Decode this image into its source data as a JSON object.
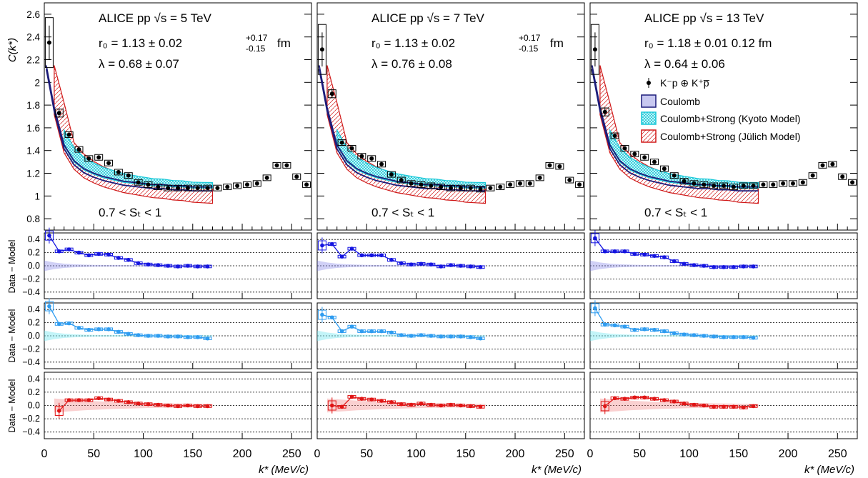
{
  "colors": {
    "coulomb": "#1c1c7a",
    "coulomb_fill": "#c8c8f0",
    "kyoto": "#18c8d8",
    "julich": "#d01818",
    "resid_blue": "#1414e0",
    "resid_cyan": "#2e9cf0",
    "resid_red": "#e01414"
  },
  "axes": {
    "y_top_label": "C(k*)",
    "y_top_ticks": [
      "0.8",
      "1",
      "1.2",
      "1.4",
      "1.6",
      "1.8",
      "2",
      "2.2",
      "2.4",
      "2.6"
    ],
    "y_resid_label": "Data − Model",
    "y_resid_ticks": [
      "−0.4",
      "−0.2",
      "0.0",
      "0.2",
      "0.4"
    ],
    "x_ticks": [
      "0",
      "50",
      "100",
      "150",
      "200",
      "250"
    ],
    "x_label": "k* (MeV/c)"
  },
  "legend": {
    "data": "K⁻p ⊕ K⁺p̅",
    "coulomb": "Coulomb",
    "kyoto": "Coulomb+Strong (Kyoto Model)",
    "julich": "Coulomb+Strong (Jülich Model)"
  },
  "panels": [
    {
      "energy": "ALICE pp  √s = 5 TeV",
      "radius": "r₀ = 1.13 ± 0.02 ⁺⁰·¹⁷₋₀.₁₅ fm",
      "radius_main": "r₀ = 1.13 ± 0.02",
      "radius_up": "+0.17",
      "radius_down": "-0.15",
      "lambda": "λ = 0.68 ± 0.07",
      "st": "0.7 < Sₜ < 1"
    },
    {
      "energy": "ALICE pp  √s = 7 TeV",
      "radius": "r₀ = 1.13 ± 0.02 +0.17 -0.15 fm",
      "radius_main": "r₀ = 1.13 ± 0.02",
      "radius_up": "+0.17",
      "radius_down": "-0.15",
      "lambda": "λ = 0.76 ± 0.08",
      "st": "0.7 < Sₜ < 1"
    },
    {
      "energy": "ALICE pp  √s = 13 TeV",
      "radius": "r₀ = 1.18 ± 0.01 ± 0.12 fm",
      "radius_main": "r₀ = 1.18 ± 0.01  0.12 fm",
      "radius_up": "",
      "radius_down": "",
      "lambda": "λ = 0.64 ± 0.06",
      "st": "0.7 < Sₜ < 1"
    }
  ],
  "chart_data": {
    "type": "scatter",
    "xlabel": "k* (MeV/c)",
    "xlim": [
      0,
      270
    ],
    "ylim_top": [
      0.7,
      2.7
    ],
    "ylim_resid": [
      -0.5,
      0.5
    ],
    "x": [
      5,
      15,
      25,
      35,
      45,
      55,
      65,
      75,
      85,
      95,
      105,
      115,
      125,
      135,
      145,
      155,
      165,
      175,
      185,
      195,
      205,
      215,
      225,
      235,
      245,
      255,
      265
    ],
    "series": [
      {
        "name": "K⁻p ⊕ K⁺p̅",
        "panel": 0,
        "y": [
          2.35,
          1.73,
          1.54,
          1.41,
          1.33,
          1.34,
          1.29,
          1.21,
          1.18,
          1.12,
          1.1,
          1.08,
          1.07,
          1.07,
          1.07,
          1.07,
          1.07,
          1.07,
          1.08,
          1.09,
          1.1,
          1.11,
          1.16,
          1.27,
          1.27,
          1.17,
          1.1
        ]
      },
      {
        "name": "K⁻p ⊕ K⁺p̅",
        "panel": 1,
        "y": [
          2.29,
          1.9,
          1.47,
          1.42,
          1.35,
          1.33,
          1.28,
          1.19,
          1.14,
          1.11,
          1.1,
          1.09,
          1.08,
          1.07,
          1.07,
          1.07,
          1.06,
          1.07,
          1.08,
          1.1,
          1.11,
          1.11,
          1.16,
          1.27,
          1.26,
          1.14,
          1.1
        ]
      },
      {
        "name": "K⁻p ⊕ K⁺p̅",
        "panel": 2,
        "y": [
          2.29,
          1.74,
          1.53,
          1.42,
          1.37,
          1.34,
          1.3,
          1.24,
          1.18,
          1.13,
          1.11,
          1.1,
          1.09,
          1.09,
          1.08,
          1.09,
          1.09,
          1.1,
          1.1,
          1.11,
          1.11,
          1.12,
          1.18,
          1.27,
          1.28,
          1.17,
          1.12
        ]
      }
    ],
    "residuals": [
      {
        "panel": 0,
        "model": "Coulomb",
        "x": [
          5,
          15,
          25,
          35,
          45,
          55,
          65,
          75,
          85,
          95,
          105,
          115,
          125,
          135,
          145,
          155,
          165
        ],
        "y": [
          0.46,
          0.22,
          0.25,
          0.2,
          0.16,
          0.18,
          0.17,
          0.12,
          0.09,
          0.04,
          0.02,
          0.01,
          0.0,
          -0.01,
          0.0,
          -0.01,
          -0.01
        ]
      },
      {
        "panel": 1,
        "model": "Coulomb",
        "x": [
          5,
          15,
          25,
          35,
          45,
          55,
          65,
          75,
          85,
          95,
          105,
          115,
          125,
          135,
          145,
          155,
          165
        ],
        "y": [
          0.31,
          0.33,
          0.14,
          0.26,
          0.16,
          0.16,
          0.16,
          0.09,
          0.04,
          0.02,
          0.03,
          0.02,
          -0.01,
          0.01,
          0.0,
          -0.01,
          -0.02
        ]
      },
      {
        "panel": 2,
        "model": "Coulomb",
        "x": [
          5,
          15,
          25,
          35,
          45,
          55,
          65,
          75,
          85,
          95,
          105,
          115,
          125,
          135,
          145,
          155,
          165
        ],
        "y": [
          0.42,
          0.22,
          0.22,
          0.22,
          0.18,
          0.17,
          0.15,
          0.13,
          0.07,
          0.03,
          0.01,
          0.0,
          -0.02,
          -0.02,
          -0.02,
          -0.01,
          -0.01
        ]
      },
      {
        "panel": 0,
        "model": "Kyoto",
        "x": [
          5,
          15,
          25,
          35,
          45,
          55,
          65,
          75,
          85,
          95,
          105,
          115,
          125,
          135,
          145,
          155,
          165
        ],
        "y": [
          0.45,
          0.18,
          0.19,
          0.12,
          0.09,
          0.1,
          0.1,
          0.06,
          0.03,
          0.01,
          0.0,
          0.0,
          -0.01,
          -0.01,
          -0.02,
          -0.02,
          -0.04
        ]
      },
      {
        "panel": 1,
        "model": "Kyoto",
        "x": [
          5,
          15,
          25,
          35,
          45,
          55,
          65,
          75,
          85,
          95,
          105,
          115,
          125,
          135,
          145,
          155,
          165
        ],
        "y": [
          0.32,
          0.28,
          0.07,
          0.14,
          0.07,
          0.07,
          0.07,
          0.05,
          0.01,
          0.0,
          0.01,
          0.0,
          -0.01,
          -0.01,
          -0.01,
          -0.02,
          -0.04
        ]
      },
      {
        "panel": 2,
        "model": "Kyoto",
        "x": [
          5,
          15,
          25,
          35,
          45,
          55,
          65,
          75,
          85,
          95,
          105,
          115,
          125,
          135,
          145,
          155,
          165
        ],
        "y": [
          0.42,
          0.17,
          0.16,
          0.14,
          0.09,
          0.1,
          0.09,
          0.07,
          0.04,
          0.02,
          0.01,
          0.0,
          -0.01,
          -0.02,
          -0.02,
          -0.02,
          -0.03
        ]
      },
      {
        "panel": 0,
        "model": "Jülich",
        "x": [
          15,
          25,
          35,
          45,
          55,
          65,
          75,
          85,
          95,
          105,
          115,
          125,
          135,
          145,
          155,
          165
        ],
        "y": [
          -0.08,
          0.08,
          0.08,
          0.08,
          0.11,
          0.09,
          0.07,
          0.05,
          0.03,
          0.02,
          0.01,
          0.0,
          -0.01,
          0.0,
          -0.01,
          -0.01
        ]
      },
      {
        "panel": 1,
        "model": "Jülich",
        "x": [
          15,
          25,
          35,
          45,
          55,
          65,
          75,
          85,
          95,
          105,
          115,
          125,
          135,
          145,
          155,
          165
        ],
        "y": [
          0.0,
          -0.02,
          0.13,
          0.1,
          0.09,
          0.07,
          0.05,
          0.02,
          0.01,
          0.03,
          0.01,
          0.0,
          0.01,
          0.0,
          -0.01,
          -0.02
        ]
      },
      {
        "panel": 2,
        "model": "Jülich",
        "x": [
          15,
          25,
          35,
          45,
          55,
          65,
          75,
          85,
          95,
          105,
          115,
          125,
          135,
          145,
          155,
          165
        ],
        "y": [
          -0.01,
          0.11,
          0.1,
          0.12,
          0.12,
          0.1,
          0.08,
          0.06,
          0.03,
          0.01,
          0.0,
          -0.02,
          -0.02,
          -0.02,
          -0.03,
          -0.01
        ]
      }
    ],
    "models_top": {
      "coulomb_x": [
        2,
        10,
        20,
        30,
        40,
        50,
        60,
        70,
        80,
        90,
        100,
        110,
        120,
        130,
        140,
        150,
        160,
        170
      ],
      "coulomb_y": [
        2.15,
        1.78,
        1.45,
        1.31,
        1.24,
        1.2,
        1.17,
        1.15,
        1.13,
        1.12,
        1.11,
        1.1,
        1.1,
        1.09,
        1.09,
        1.08,
        1.08,
        1.08
      ]
    }
  }
}
